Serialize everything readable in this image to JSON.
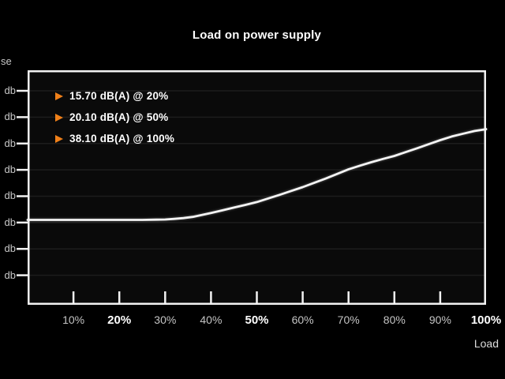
{
  "title": "Load on power supply",
  "colors": {
    "background": "#000000",
    "plot_background": "#0a0a0a",
    "plot_border": "#f2f2f2",
    "gridline": "#1d1d1d",
    "curve": "#f4f4f4",
    "accent_orange": "#f08019",
    "tick_label": "#c9c9c9",
    "emphasized_label": "#ffffff"
  },
  "annotations": [
    {
      "label": "15.70 dB(A) @ 20%"
    },
    {
      "label": "20.10 dB(A) @ 50%"
    },
    {
      "label": "38.10 dB(A) @ 100%"
    }
  ],
  "y_axis": {
    "title_fragment": "se",
    "tick_label": "db",
    "tick_count": 8
  },
  "x_axis": {
    "label": "Load",
    "ticks": [
      {
        "label": "10%",
        "bold": false
      },
      {
        "label": "20%",
        "bold": true
      },
      {
        "label": "30%",
        "bold": false
      },
      {
        "label": "40%",
        "bold": false
      },
      {
        "label": "50%",
        "bold": true
      },
      {
        "label": "60%",
        "bold": false
      },
      {
        "label": "70%",
        "bold": false
      },
      {
        "label": "80%",
        "bold": false
      },
      {
        "label": "90%",
        "bold": false
      },
      {
        "label": "100%",
        "bold": true
      }
    ]
  },
  "chart_data": {
    "type": "line",
    "title": "Load on power supply",
    "xlabel": "Load",
    "ylabel_visible_fragment": "se",
    "y_unit": "db",
    "x_range": [
      0,
      100
    ],
    "x_ticks": [
      "10%",
      "20%",
      "30%",
      "40%",
      "50%",
      "60%",
      "70%",
      "80%",
      "90%",
      "100%"
    ],
    "emphasized_x_ticks": [
      "20%",
      "50%",
      "100%"
    ],
    "grid": "horizontal-only",
    "legend": "none",
    "key_points": [
      {
        "load_pct": 20,
        "db": 15.7
      },
      {
        "load_pct": 50,
        "db": 20.1
      },
      {
        "load_pct": 100,
        "db": 38.1
      }
    ],
    "series": [
      {
        "name": "dB(A)",
        "x": [
          0,
          5,
          10,
          15,
          20,
          25,
          28,
          30,
          32,
          34,
          36,
          38,
          40,
          42.5,
          45,
          47.5,
          50,
          52.5,
          55,
          57.5,
          60,
          62.5,
          65,
          67.5,
          70,
          72.5,
          75,
          77.5,
          80,
          82.5,
          85,
          87.5,
          90,
          92.5,
          95,
          97.5,
          100
        ],
        "y": [
          15.7,
          15.7,
          15.7,
          15.7,
          15.7,
          15.7,
          15.75,
          15.8,
          15.95,
          16.15,
          16.45,
          16.9,
          17.4,
          18.05,
          18.75,
          19.4,
          20.1,
          21.0,
          21.9,
          22.85,
          23.8,
          24.85,
          25.9,
          27.05,
          28.2,
          29.1,
          29.95,
          30.75,
          31.5,
          32.45,
          33.4,
          34.4,
          35.4,
          36.3,
          37.0,
          37.65,
          38.1
        ]
      }
    ]
  }
}
